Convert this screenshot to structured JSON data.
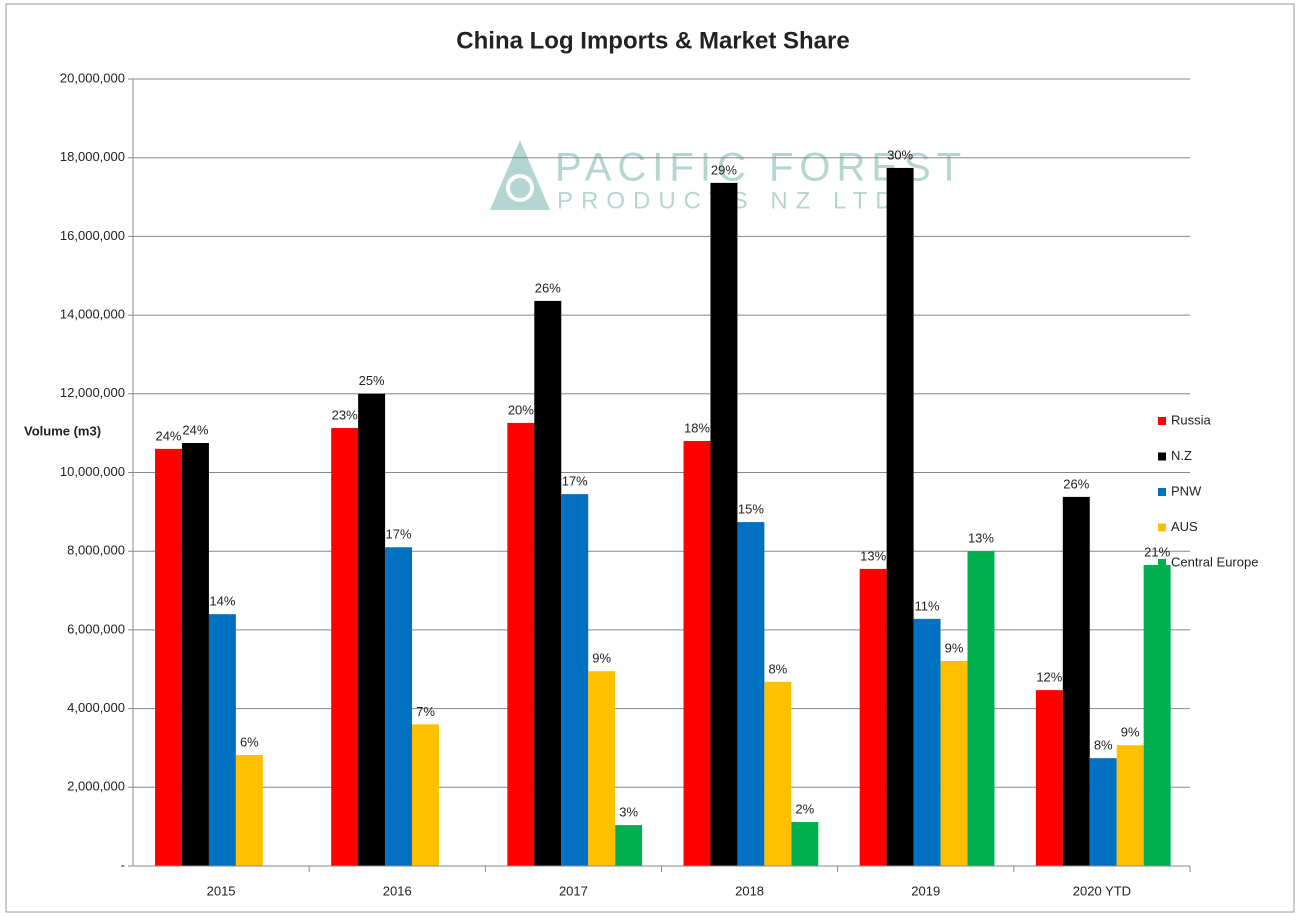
{
  "chart_data": {
    "type": "bar",
    "title": "China Log Imports & Market Share",
    "y_label": "Volume (m3)",
    "watermark": [
      "PACIFIC FOREST",
      "PRODUCTS NZ LTD"
    ],
    "categories": [
      "2015",
      "2016",
      "2017",
      "2018",
      "2019",
      "2020 YTD"
    ],
    "series": [
      {
        "name": "Russia",
        "color": "#ff0000",
        "values": [
          10600000,
          11130000,
          11260000,
          10800000,
          7550000,
          4470000
        ],
        "share_labels": [
          "24%",
          "23%",
          "20%",
          "18%",
          "13%",
          "12%"
        ]
      },
      {
        "name": "N.Z",
        "color": "#000000",
        "values": [
          10750000,
          12000000,
          14360000,
          17360000,
          17740000,
          9380000
        ],
        "share_labels": [
          "24%",
          "25%",
          "26%",
          "29%",
          "30%",
          "26%"
        ]
      },
      {
        "name": "PNW",
        "color": "#0070c0",
        "values": [
          6400000,
          8100000,
          9450000,
          8740000,
          6280000,
          2740000
        ],
        "share_labels": [
          "14%",
          "17%",
          "17%",
          "15%",
          "11%",
          "8%"
        ]
      },
      {
        "name": "AUS",
        "color": "#ffc000",
        "values": [
          2820000,
          3600000,
          4950000,
          4680000,
          5210000,
          3070000
        ],
        "share_labels": [
          "6%",
          "7%",
          "9%",
          "8%",
          "9%",
          "9%"
        ]
      },
      {
        "name": "Central Europe",
        "color": "#00b050",
        "values": [
          null,
          null,
          1040000,
          1120000,
          8000000,
          7650000
        ],
        "share_labels": [
          null,
          null,
          "3%",
          "2%",
          "13%",
          "21%"
        ]
      }
    ],
    "ylim": [
      0,
      20000000
    ],
    "yticks": [
      {
        "value": 0,
        "label": "-"
      },
      {
        "value": 2000000,
        "label": "2,000,000"
      },
      {
        "value": 4000000,
        "label": "4,000,000"
      },
      {
        "value": 6000000,
        "label": "6,000,000"
      },
      {
        "value": 8000000,
        "label": "8,000,000"
      },
      {
        "value": 10000000,
        "label": "10,000,000"
      },
      {
        "value": 12000000,
        "label": "12,000,000"
      },
      {
        "value": 14000000,
        "label": "14,000,000"
      },
      {
        "value": 16000000,
        "label": "16,000,000"
      },
      {
        "value": 18000000,
        "label": "18,000,000"
      },
      {
        "value": 20000000,
        "label": "20,000,000"
      }
    ],
    "grid": true,
    "legend": "right"
  }
}
